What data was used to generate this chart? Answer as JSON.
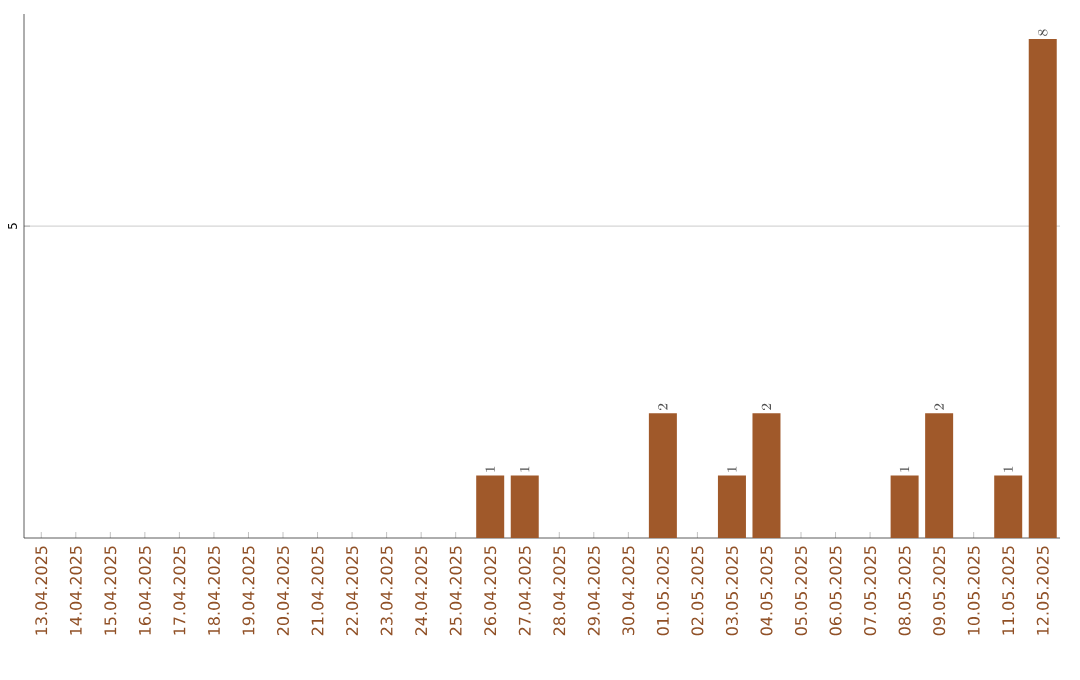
{
  "chart_data": {
    "type": "bar",
    "categories": [
      "13.04.2025",
      "14.04.2025",
      "15.04.2025",
      "16.04.2025",
      "17.04.2025",
      "18.04.2025",
      "19.04.2025",
      "20.04.2025",
      "21.04.2025",
      "22.04.2025",
      "23.04.2025",
      "24.04.2025",
      "25.04.2025",
      "26.04.2025",
      "27.04.2025",
      "28.04.2025",
      "29.04.2025",
      "30.04.2025",
      "01.05.2025",
      "02.05.2025",
      "03.05.2025",
      "04.05.2025",
      "05.05.2025",
      "06.05.2025",
      "07.05.2025",
      "08.05.2025",
      "09.05.2025",
      "10.05.2025",
      "11.05.2025",
      "12.05.2025"
    ],
    "values": [
      null,
      null,
      null,
      null,
      null,
      null,
      null,
      null,
      null,
      null,
      null,
      null,
      null,
      1,
      1,
      null,
      null,
      null,
      2,
      null,
      1,
      2,
      null,
      null,
      null,
      1,
      2,
      null,
      1,
      8
    ],
    "color": "#a0592a",
    "ylim": [
      0,
      8.4
    ],
    "yticks": [
      5
    ],
    "grid": "y",
    "data_labels": true
  }
}
